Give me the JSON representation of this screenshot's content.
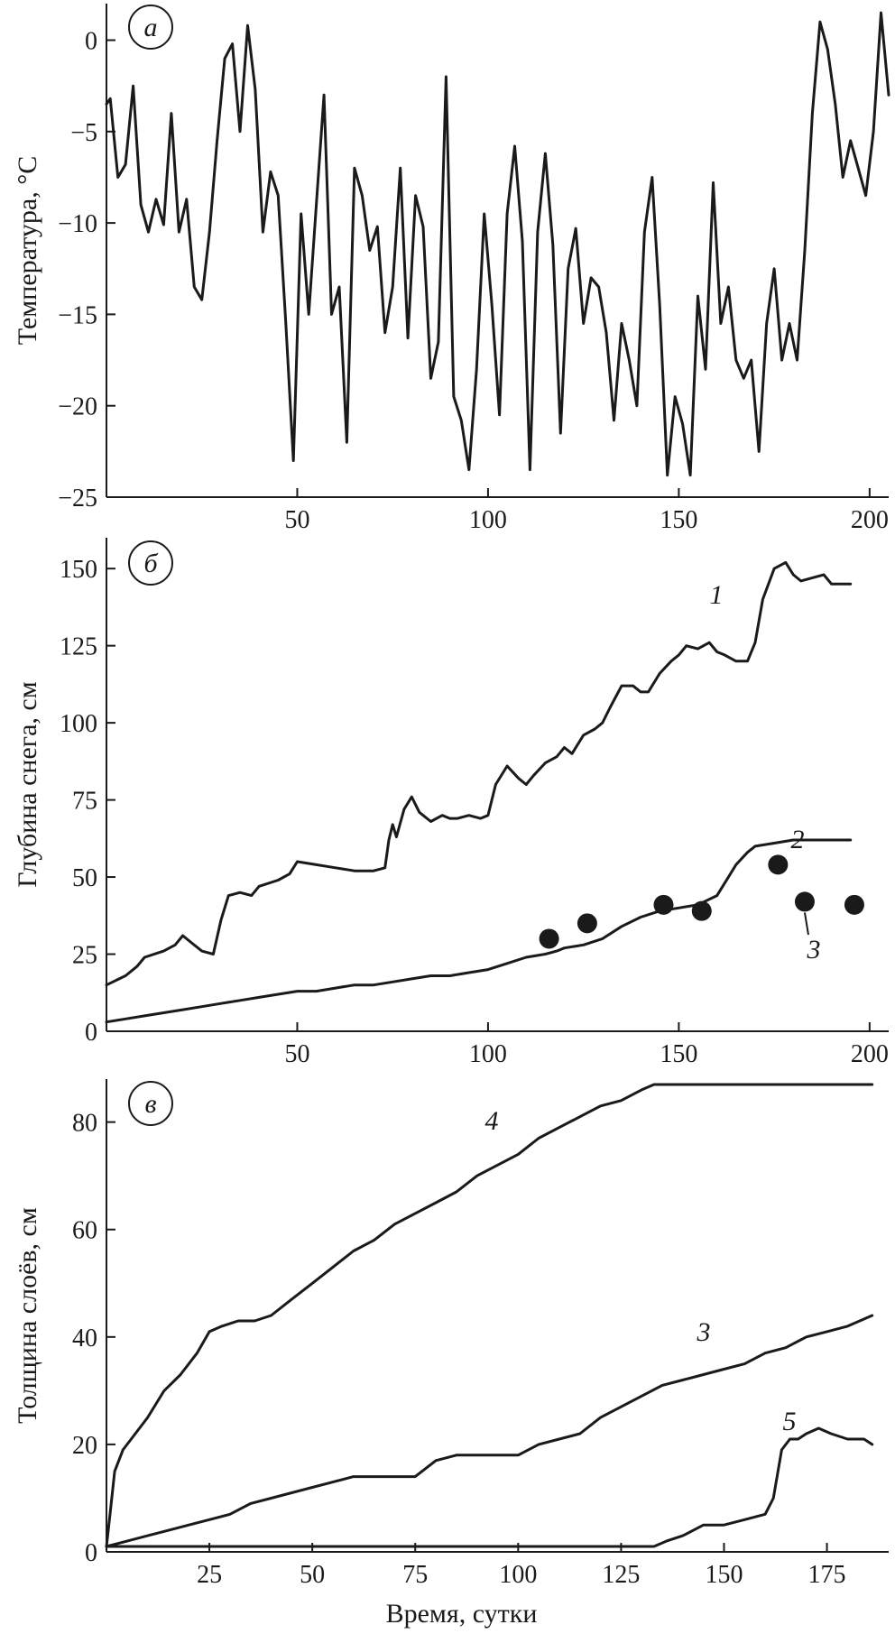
{
  "chart_data": [
    {
      "type": "line",
      "panel": "a",
      "title": "",
      "xlabel": "",
      "ylabel": "Температура, °C",
      "xlim": [
        0,
        205
      ],
      "ylim": [
        -25,
        2
      ],
      "xticks": [
        50,
        100,
        150,
        200
      ],
      "yticks": [
        0,
        -5,
        -10,
        -15,
        -20,
        -25
      ],
      "grid": false,
      "series": [
        {
          "x": [
            0,
            1,
            3,
            5,
            7,
            9,
            11,
            13,
            15,
            17,
            19,
            21,
            23,
            25,
            27,
            29,
            31,
            33,
            35,
            37,
            39,
            41,
            43,
            45,
            47,
            49,
            51,
            53,
            55,
            57,
            59,
            61,
            63,
            65,
            67,
            69,
            71,
            73,
            75,
            77,
            79,
            81,
            83,
            85,
            87,
            89,
            91,
            93,
            95,
            97,
            99,
            101,
            103,
            105,
            107,
            109,
            111,
            113,
            115,
            117,
            119,
            121,
            123,
            125,
            127,
            129,
            131,
            133,
            135,
            137,
            139,
            141,
            143,
            145,
            147,
            149,
            151,
            153,
            155,
            157,
            159,
            161,
            163,
            165,
            167,
            169,
            171,
            173,
            175,
            177,
            179,
            181,
            183,
            185,
            187,
            189,
            191,
            193,
            195,
            197,
            199,
            201,
            203,
            205
          ],
          "y": [
            -3.5,
            -3.2,
            -7.5,
            -6.8,
            -2.5,
            -9,
            -10.5,
            -8.7,
            -10.1,
            -4,
            -10.5,
            -8.7,
            -13.5,
            -14.2,
            -10.5,
            -5.5,
            -1,
            -0.2,
            -5,
            0.8,
            -2.7,
            -10.5,
            -7.2,
            -8.5,
            -15.5,
            -23,
            -9.5,
            -15,
            -9,
            -3,
            -15,
            -13.5,
            -22,
            -7,
            -8.5,
            -11.5,
            -10.2,
            -16,
            -13.5,
            -7,
            -16.3,
            -8.5,
            -10.2,
            -18.5,
            -16.5,
            -2,
            -19.5,
            -20.8,
            -23.5,
            -18,
            -9.5,
            -14.5,
            -20.5,
            -9.5,
            -5.8,
            -11,
            -23.5,
            -10.5,
            -6.2,
            -11.2,
            -21.5,
            -12.5,
            -10.3,
            -15.5,
            -13,
            -13.5,
            -16,
            -20.8,
            -15.5,
            -17.5,
            -20,
            -10.5,
            -7.5,
            -14.5,
            -23.8,
            -19.5,
            -21,
            -23.8,
            -14,
            -18,
            -7.8,
            -15.5,
            -13.5,
            -17.5,
            -18.5,
            -17.5,
            -22.5,
            -15.5,
            -12.5,
            -17.5,
            -15.5,
            -17.5,
            -11.5,
            -4,
            1,
            -0.5,
            -3.5,
            -7.5,
            -5.5,
            -7,
            -8.5,
            -5,
            1.5,
            -3
          ]
        }
      ]
    },
    {
      "type": "line",
      "panel": "б",
      "title": "",
      "xlabel": "",
      "ylabel": "Глубина снега, см",
      "xlim": [
        0,
        205
      ],
      "ylim": [
        0,
        160
      ],
      "xticks": [
        50,
        100,
        150,
        200
      ],
      "yticks": [
        0,
        25,
        50,
        75,
        100,
        125,
        150
      ],
      "grid": false,
      "series": [
        {
          "name": "1",
          "x": [
            0,
            5,
            8,
            10,
            15,
            18,
            20,
            22,
            25,
            28,
            30,
            32,
            35,
            38,
            40,
            45,
            48,
            50,
            55,
            60,
            65,
            70,
            73,
            74,
            75,
            76,
            78,
            80,
            82,
            85,
            88,
            90,
            92,
            95,
            98,
            100,
            102,
            105,
            108,
            110,
            112,
            115,
            118,
            120,
            122,
            125,
            128,
            130,
            132,
            135,
            138,
            140,
            142,
            145,
            148,
            150,
            152,
            155,
            158,
            160,
            162,
            165,
            168,
            170,
            172,
            175,
            178,
            180,
            182,
            185,
            188,
            190,
            193,
            195
          ],
          "y": [
            15,
            18,
            21,
            24,
            26,
            28,
            31,
            29,
            26,
            25,
            36,
            44,
            45,
            44,
            47,
            49,
            51,
            55,
            54,
            53,
            52,
            52,
            53,
            62,
            67,
            63,
            72,
            76,
            71,
            68,
            70,
            69,
            69,
            70,
            69,
            70,
            80,
            86,
            82,
            80,
            83,
            87,
            89,
            92,
            90,
            96,
            98,
            100,
            105,
            112,
            112,
            110,
            110,
            116,
            120,
            122,
            125,
            124,
            126,
            123,
            122,
            120,
            120,
            126,
            140,
            150,
            152,
            148,
            146,
            147,
            148,
            145,
            145,
            145
          ]
        },
        {
          "name": "2",
          "x": [
            0,
            5,
            10,
            15,
            20,
            25,
            30,
            35,
            40,
            45,
            50,
            55,
            60,
            65,
            70,
            75,
            80,
            85,
            90,
            95,
            100,
            105,
            110,
            115,
            118,
            120,
            125,
            130,
            135,
            140,
            145,
            150,
            155,
            160,
            163,
            165,
            168,
            170,
            175,
            180,
            185,
            190,
            195
          ],
          "y": [
            3,
            4,
            5,
            6,
            7,
            8,
            9,
            10,
            11,
            12,
            13,
            13,
            14,
            15,
            15,
            16,
            17,
            18,
            18,
            19,
            20,
            22,
            24,
            25,
            26,
            27,
            28,
            30,
            34,
            37,
            39,
            40,
            41,
            44,
            50,
            54,
            58,
            60,
            61,
            62,
            62,
            62,
            62
          ]
        },
        {
          "name": "3",
          "type": "scatter",
          "x": [
            116,
            126,
            146,
            156,
            176,
            183,
            196
          ],
          "y": [
            30,
            35,
            41,
            39,
            54,
            42,
            41
          ]
        }
      ]
    },
    {
      "type": "line",
      "panel": "в",
      "title": "",
      "xlabel": "Время, сутки",
      "ylabel": "Толщина слоёв, см",
      "xlim": [
        0,
        190
      ],
      "ylim": [
        0,
        88
      ],
      "xticks": [
        25,
        50,
        75,
        100,
        125,
        150,
        175
      ],
      "yticks": [
        0,
        20,
        40,
        60,
        80
      ],
      "grid": false,
      "series": [
        {
          "name": "4",
          "x": [
            0,
            1,
            2,
            4,
            6,
            10,
            14,
            18,
            22,
            25,
            28,
            32,
            36,
            40,
            45,
            50,
            55,
            60,
            65,
            70,
            75,
            80,
            85,
            90,
            95,
            100,
            105,
            110,
            115,
            120,
            125,
            130,
            133,
            140,
            150,
            160,
            170,
            180,
            186
          ],
          "y": [
            1,
            8,
            15,
            19,
            21,
            25,
            30,
            33,
            37,
            41,
            42,
            43,
            43,
            44,
            47,
            50,
            53,
            56,
            58,
            61,
            63,
            65,
            67,
            70,
            72,
            74,
            77,
            79,
            81,
            83,
            84,
            86,
            87,
            87,
            87,
            87,
            87,
            87,
            87
          ]
        },
        {
          "name": "3",
          "x": [
            0,
            5,
            10,
            15,
            20,
            25,
            30,
            35,
            40,
            45,
            50,
            55,
            60,
            65,
            70,
            75,
            80,
            85,
            90,
            95,
            100,
            105,
            110,
            115,
            120,
            125,
            130,
            135,
            140,
            145,
            150,
            155,
            160,
            165,
            170,
            175,
            180,
            186
          ],
          "y": [
            1,
            2,
            3,
            4,
            5,
            6,
            7,
            9,
            10,
            11,
            12,
            13,
            14,
            14,
            14,
            14,
            17,
            18,
            18,
            18,
            18,
            20,
            21,
            22,
            25,
            27,
            29,
            31,
            32,
            33,
            34,
            35,
            37,
            38,
            40,
            41,
            42,
            44
          ]
        },
        {
          "name": "5",
          "x": [
            0,
            120,
            133,
            136,
            140,
            145,
            150,
            155,
            160,
            162,
            164,
            166,
            168,
            170,
            173,
            176,
            180,
            184,
            186
          ],
          "y": [
            1,
            1,
            1,
            2,
            3,
            5,
            5,
            6,
            7,
            10,
            19,
            21,
            21,
            22,
            23,
            22,
            21,
            21,
            20
          ]
        }
      ]
    }
  ]
}
